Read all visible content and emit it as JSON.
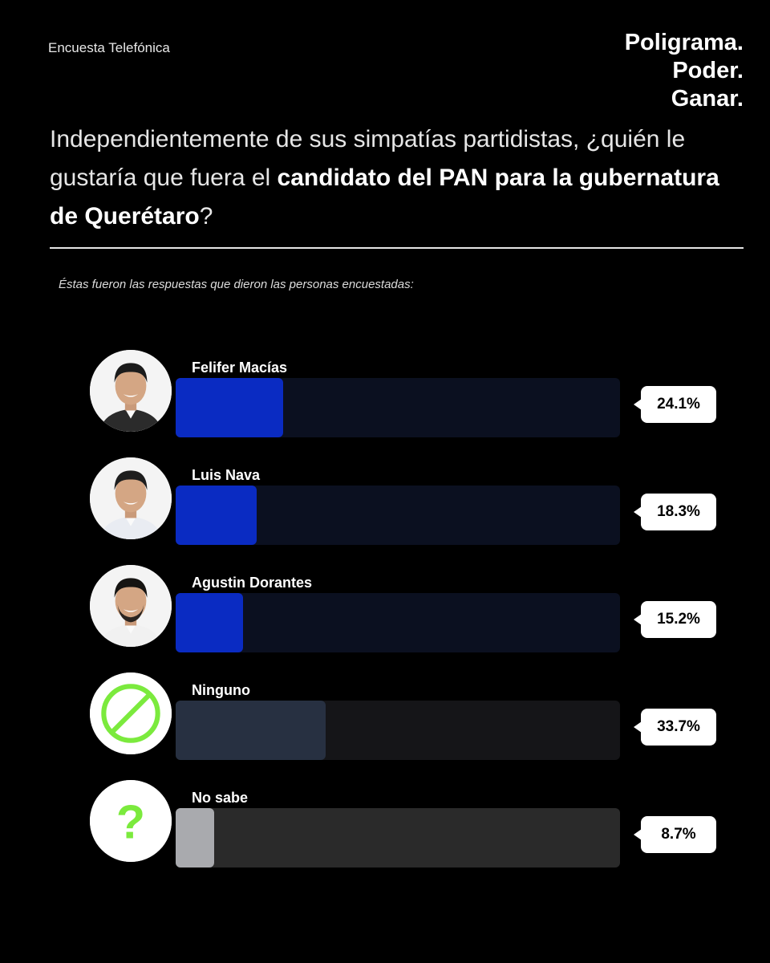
{
  "header": {
    "survey_type": "Encuesta Telefónica",
    "brand_lines": [
      "Poligrama.",
      "Poder.",
      "Ganar."
    ]
  },
  "question": {
    "part1": "Independientemente de sus simpatías partidistas, ¿quién le gustaría que fuera el ",
    "part2_bold": "candidato del PAN para la gubernatura de Querétaro",
    "part3": "?"
  },
  "subtitle": "Éstas fueron las respuestas que dieron las personas encuestadas:",
  "colors": {
    "candidate_fill": "#0a2bc2",
    "candidate_track": "#0b1020",
    "ninguno_fill": "#273041",
    "ninguno_track": "#151518",
    "nosabe_fill": "#a9aaae",
    "nosabe_track": "#2a2a2a",
    "icon_green": "#7bea3d"
  },
  "chart_data": {
    "type": "bar",
    "orientation": "horizontal",
    "categories": [
      "Felifer Macías",
      "Luis Nava",
      "Agustin Dorantes",
      "Ninguno",
      "No sabe"
    ],
    "values": [
      24.1,
      18.3,
      15.2,
      33.7,
      8.7
    ],
    "value_labels": [
      "24.1%",
      "18.3%",
      "15.2%",
      "33.7%",
      "8.7%"
    ],
    "xlim": [
      0,
      100
    ],
    "icons": [
      "candidate-photo",
      "candidate-photo",
      "candidate-photo",
      "prohibited-icon",
      "question-icon"
    ]
  }
}
